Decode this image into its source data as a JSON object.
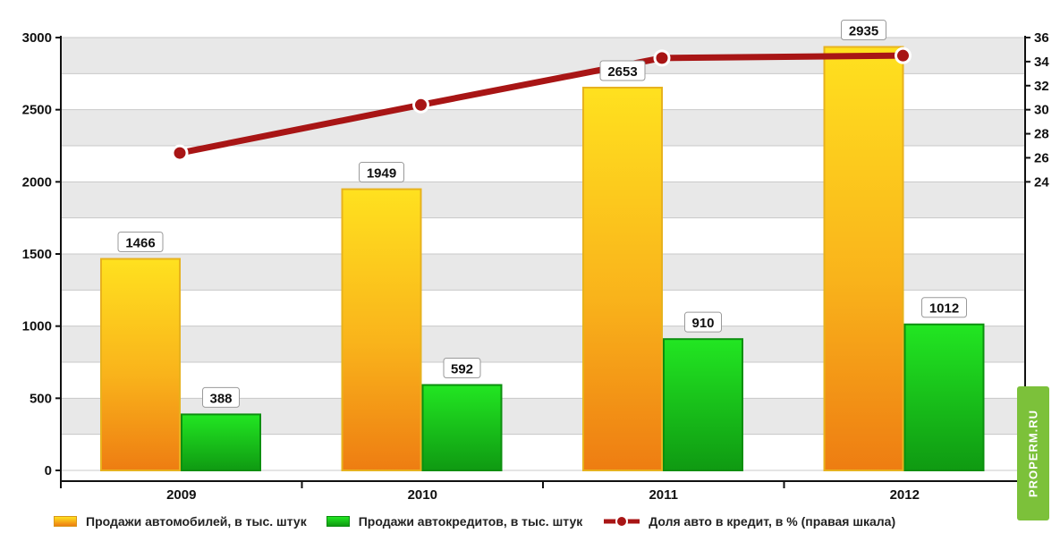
{
  "chart_data": {
    "type": "bar",
    "categories": [
      "2009",
      "2010",
      "2011",
      "2012"
    ],
    "series": [
      {
        "name": "Продажи автомобилей, в тыс. штук",
        "kind": "bar",
        "axis": "left",
        "values": [
          1466,
          1949,
          2653,
          2935
        ]
      },
      {
        "name": "Продажи автокредитов, в тыс. штук",
        "kind": "bar",
        "axis": "left",
        "values": [
          388,
          592,
          910,
          1012
        ]
      },
      {
        "name": "Доля авто в кредит, в % (правая шкала)",
        "kind": "line",
        "axis": "right",
        "values": [
          26.4,
          30.4,
          34.3,
          34.5
        ]
      }
    ],
    "left_axis": {
      "ylim": [
        0,
        3000
      ],
      "ticks": [
        0,
        500,
        1000,
        1500,
        2000,
        2500,
        3000
      ]
    },
    "right_axis": {
      "ylim": [
        0,
        36
      ],
      "ticks": [
        0,
        24,
        26,
        28,
        30,
        32,
        34,
        36
      ]
    },
    "grid": true,
    "legend_position": "bottom",
    "colors": {
      "cars": "#f5a21a",
      "loans": "#1fc01f",
      "share": "#a81515",
      "grid_band": "#e8e8e8"
    }
  },
  "legend": {
    "cars": "Продажи автомобилей, в тыс. штук",
    "loans": "Продажи автокредитов, в тыс. штук",
    "share": "Доля авто в кредит, в % (правая шкала)"
  },
  "watermark": "PROPERM.RU"
}
